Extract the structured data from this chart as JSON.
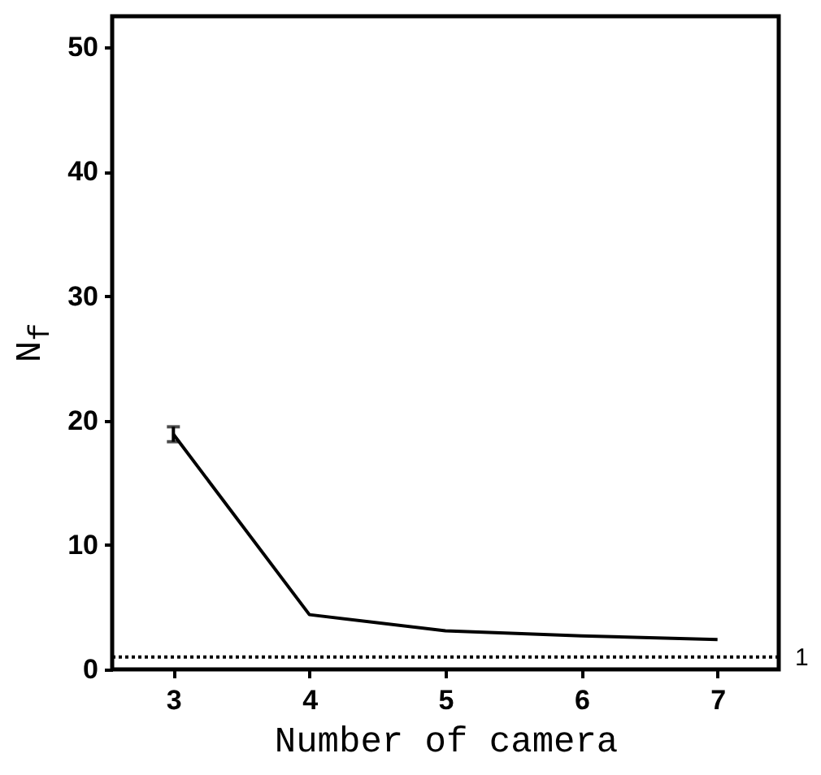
{
  "chart_data": {
    "type": "line",
    "xlabel": "Number of camera",
    "ylabel": "N$_{f}$",
    "x": [
      3,
      4,
      5,
      6,
      7
    ],
    "series": [
      {
        "color": "#000000",
        "values": [
          18.9,
          4.4,
          3.1,
          2.7,
          2.4
        ],
        "errors": [
          0.6,
          null,
          null,
          null,
          null
        ]
      }
    ],
    "xlim": [
      2.55,
      7.45
    ],
    "xticks": [
      3,
      4,
      5,
      6,
      7
    ],
    "ylim": [
      0,
      52.5
    ],
    "yticks": [
      0,
      10,
      20,
      30,
      40,
      50
    ],
    "ref_lines": [
      {
        "axis": "y",
        "value": 1,
        "label": "1",
        "color": "#000000",
        "line_style": "dotted"
      }
    ],
    "grid": false,
    "marker": "none",
    "line_style": "solid"
  }
}
